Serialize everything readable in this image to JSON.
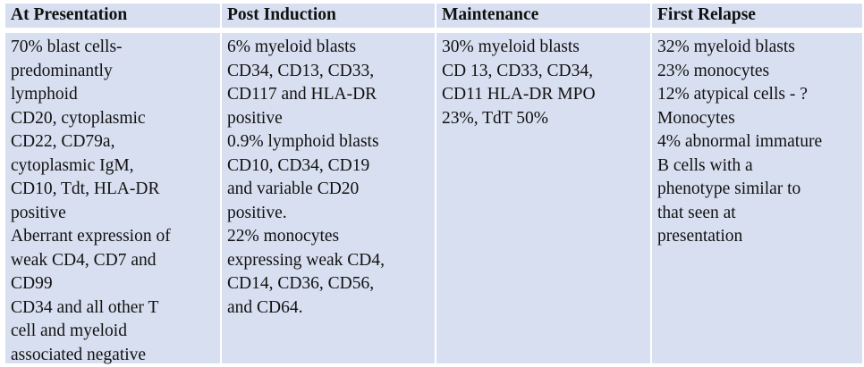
{
  "table": {
    "headers": [
      "At Presentation",
      "Post Induction",
      "Maintenance",
      "First Relapse"
    ],
    "columns": [
      {
        "lines": [
          "70% blast cells-",
          "predominantly",
          "lymphoid",
          "CD20, cytoplasmic",
          "CD22, CD79a,",
          "cytoplasmic IgM,",
          "CD10, Tdt, HLA-DR",
          "positive",
          "Aberrant expression of",
          "weak CD4, CD7 and",
          "CD99",
          "CD34 and all other T",
          "cell and myeloid",
          "associated negative"
        ]
      },
      {
        "lines": [
          "6% myeloid blasts",
          "CD34, CD13, CD33,",
          "CD117 and HLA-DR",
          "positive",
          "0.9% lymphoid blasts",
          "CD10, CD34, CD19",
          "and variable CD20",
          "positive.",
          "22% monocytes",
          "expressing weak CD4,",
          "CD14, CD36, CD56,",
          "and CD64."
        ]
      },
      {
        "lines": [
          "30% myeloid blasts",
          "CD 13, CD33, CD34,",
          "CD11 HLA-DR MPO",
          "23%, TdT 50%"
        ]
      },
      {
        "lines": [
          "32% myeloid blasts",
          "23% monocytes",
          "12% atypical cells - ?",
          "Monocytes",
          "4% abnormal immature",
          "B cells with a",
          "phenotype similar to",
          "that seen at",
          "presentation"
        ]
      }
    ]
  },
  "colors": {
    "cell_background": "#d8dff0",
    "separator": "#ffffff",
    "text": "#111111"
  }
}
